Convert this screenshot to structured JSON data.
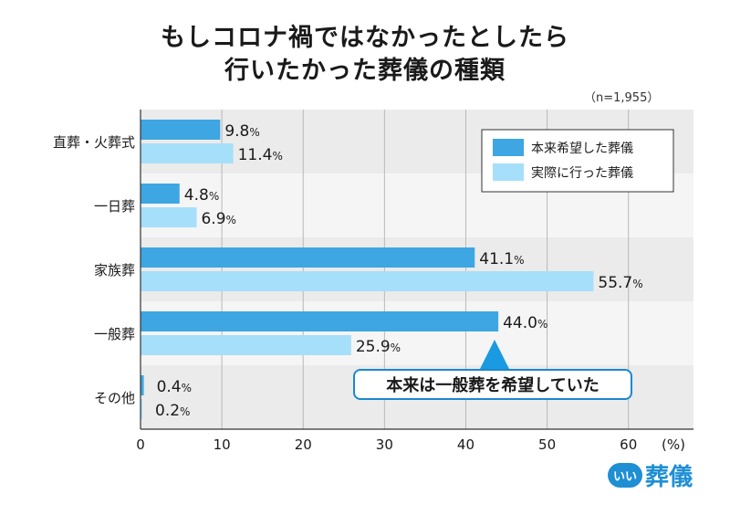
{
  "chart_data": {
    "type": "bar",
    "orientation": "horizontal",
    "title_line1": "もしコロナ禍ではなかったとしたら",
    "title_line2": "行いたかった葬儀の種類",
    "sample_note": "（n=1,955）",
    "categories": [
      "直葬・火葬式",
      "一日葬",
      "家族葬",
      "一般葬",
      "その他"
    ],
    "series": [
      {
        "name": "本来希望した葬儀",
        "values": [
          9.8,
          4.8,
          41.1,
          44.0,
          0.4
        ],
        "color": "#3ea6e2"
      },
      {
        "name": "実際に行った葬儀",
        "values": [
          11.4,
          6.9,
          55.7,
          25.9,
          0.2
        ],
        "color": "#a6dffa"
      }
    ],
    "value_labels": [
      [
        "9.8",
        "4.8",
        "41.1",
        "44.0",
        "0.4"
      ],
      [
        "11.4",
        "6.9",
        "55.7",
        "25.9",
        "0.2"
      ]
    ],
    "value_suffix": "%",
    "xlim": [
      0,
      68
    ],
    "xticks": [
      0,
      10,
      20,
      30,
      40,
      50,
      60
    ],
    "xunit": "(%)",
    "legend_position": "top-right",
    "annotation": "本来は一般葬を希望していた"
  },
  "brand": {
    "badge": "いい",
    "name": "葬儀"
  }
}
